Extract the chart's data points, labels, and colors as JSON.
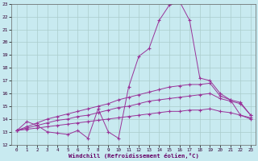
{
  "title": "",
  "xlabel": "Windchill (Refroidissement éolien,°C)",
  "ylabel": "",
  "xlim": [
    -0.5,
    23.5
  ],
  "ylim": [
    12,
    23
  ],
  "yticks": [
    12,
    13,
    14,
    15,
    16,
    17,
    18,
    19,
    20,
    21,
    22,
    23
  ],
  "xticks": [
    0,
    1,
    2,
    3,
    4,
    5,
    6,
    7,
    8,
    9,
    10,
    11,
    12,
    13,
    14,
    15,
    16,
    17,
    18,
    19,
    20,
    21,
    22,
    23
  ],
  "bg_color": "#c8eaf0",
  "line_color": "#993399",
  "grid_color": "#aacccc",
  "lines": [
    {
      "x": [
        0,
        1,
        2,
        3,
        4,
        5,
        6,
        7,
        8,
        9,
        10,
        11,
        12,
        13,
        14,
        15,
        16,
        17,
        18,
        19,
        20,
        21,
        22,
        23
      ],
      "y": [
        13.1,
        13.8,
        13.5,
        13.0,
        12.9,
        12.8,
        13.1,
        12.5,
        14.8,
        13.0,
        12.5,
        16.5,
        18.9,
        19.5,
        21.7,
        22.9,
        23.2,
        21.7,
        17.2,
        17.0,
        16.0,
        15.5,
        14.3,
        14.0
      ]
    },
    {
      "x": [
        0,
        1,
        2,
        3,
        4,
        5,
        6,
        7,
        8,
        9,
        10,
        11,
        12,
        13,
        14,
        15,
        16,
        17,
        18,
        19,
        20,
        21,
        22,
        23
      ],
      "y": [
        13.1,
        13.4,
        13.7,
        14.0,
        14.2,
        14.4,
        14.6,
        14.8,
        15.0,
        15.2,
        15.5,
        15.7,
        15.9,
        16.1,
        16.3,
        16.5,
        16.6,
        16.7,
        16.7,
        16.8,
        15.8,
        15.5,
        15.3,
        14.3
      ]
    },
    {
      "x": [
        0,
        1,
        2,
        3,
        4,
        5,
        6,
        7,
        8,
        9,
        10,
        11,
        12,
        13,
        14,
        15,
        16,
        17,
        18,
        19,
        20,
        21,
        22,
        23
      ],
      "y": [
        13.1,
        13.3,
        13.5,
        13.7,
        13.9,
        14.0,
        14.2,
        14.3,
        14.5,
        14.7,
        14.9,
        15.0,
        15.2,
        15.4,
        15.5,
        15.6,
        15.7,
        15.8,
        15.9,
        16.0,
        15.6,
        15.4,
        15.2,
        14.3
      ]
    },
    {
      "x": [
        0,
        1,
        2,
        3,
        4,
        5,
        6,
        7,
        8,
        9,
        10,
        11,
        12,
        13,
        14,
        15,
        16,
        17,
        18,
        19,
        20,
        21,
        22,
        23
      ],
      "y": [
        13.1,
        13.2,
        13.3,
        13.4,
        13.5,
        13.6,
        13.7,
        13.8,
        13.9,
        14.0,
        14.1,
        14.2,
        14.3,
        14.4,
        14.5,
        14.6,
        14.6,
        14.7,
        14.7,
        14.8,
        14.6,
        14.5,
        14.3,
        14.1
      ]
    }
  ]
}
